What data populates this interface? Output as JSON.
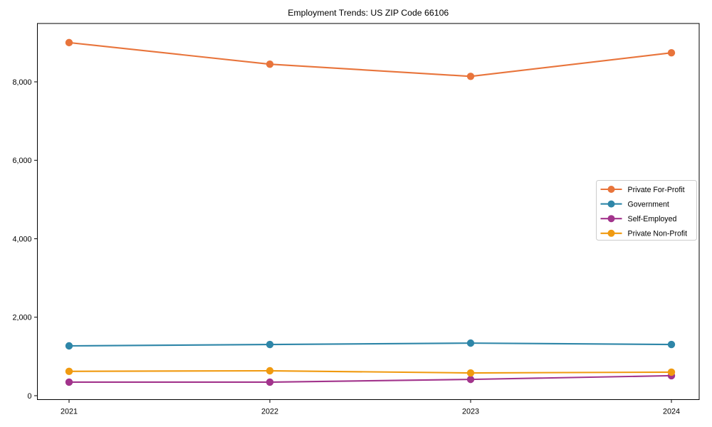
{
  "chart_data": {
    "type": "line",
    "title": "Employment Trends: US ZIP Code 66106",
    "xlabel": "",
    "ylabel": "",
    "x_labels": [
      "2021",
      "2022",
      "2023",
      "2024"
    ],
    "series": [
      {
        "name": "Private For-Profit",
        "color": "#E8743B",
        "values": [
          9000,
          8450,
          8140,
          8740
        ]
      },
      {
        "name": "Government",
        "color": "#2E86A8",
        "values": [
          1270,
          1305,
          1340,
          1305
        ]
      },
      {
        "name": "Self-Employed",
        "color": "#A2348C",
        "values": [
          345,
          345,
          415,
          510
        ]
      },
      {
        "name": "Private Non-Profit",
        "color": "#F09A10",
        "values": [
          620,
          635,
          580,
          600
        ]
      }
    ],
    "y_ticks": [
      0,
      2000,
      4000,
      6000,
      8000
    ],
    "y_tick_labels": [
      "0",
      "2,000",
      "4,000",
      "6,000",
      "8,000"
    ],
    "ylim": [
      -110,
      9490
    ],
    "grid": false,
    "legend_position": "center-right",
    "marker": "circle",
    "spine_color": "#000000",
    "legend_border_color": "#cccccc"
  }
}
